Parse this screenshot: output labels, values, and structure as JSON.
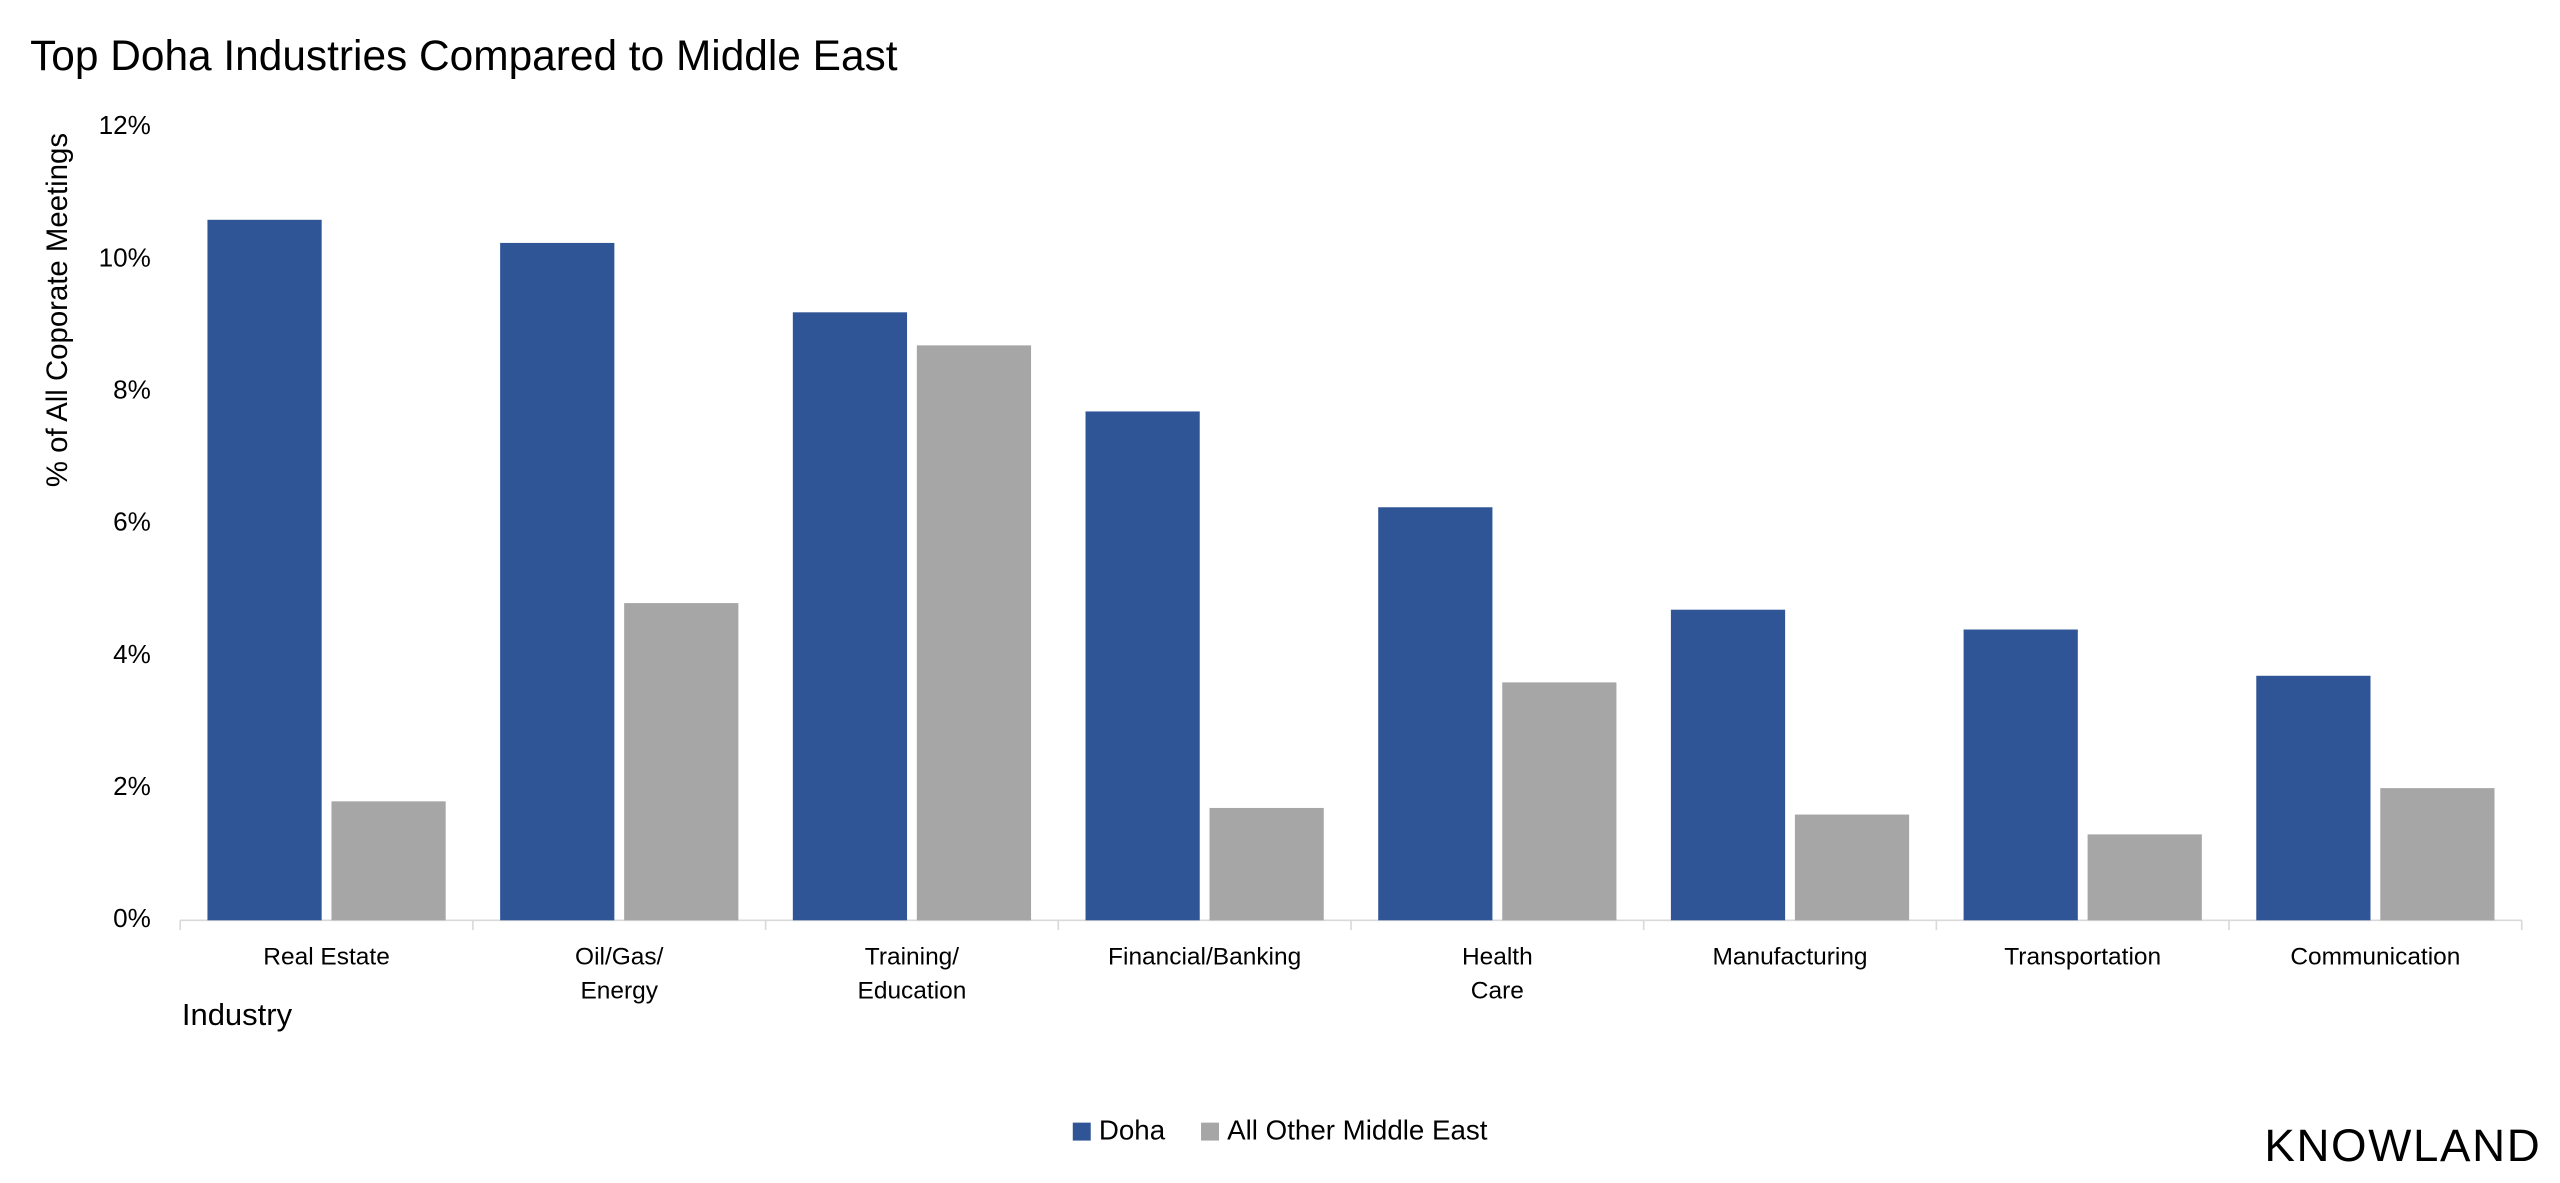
{
  "chart_data": {
    "type": "bar",
    "title": "Top Doha Industries Compared to Middle East",
    "y_label": "% of All Coporate Meetings",
    "x_label": "Industry",
    "brand": "KNOWLAND",
    "categories": [
      [
        "Real Estate"
      ],
      [
        "Oil/Gas/",
        "Energy"
      ],
      [
        "Training/",
        "Education"
      ],
      [
        "Financial/Banking"
      ],
      [
        "Health",
        "Care"
      ],
      [
        "Manufacturing"
      ],
      [
        "Transportation"
      ],
      [
        "Communication"
      ]
    ],
    "series": [
      {
        "name": "Doha",
        "color": "#2f5597",
        "values": [
          10.6,
          10.25,
          9.2,
          7.7,
          6.25,
          4.7,
          4.4,
          3.7
        ]
      },
      {
        "name": "All Other Middle East",
        "color": "#a6a6a6",
        "values": [
          1.8,
          4.8,
          8.7,
          1.7,
          3.6,
          1.6,
          1.3,
          2.0
        ]
      }
    ],
    "ylim": [
      0,
      12
    ],
    "yticks": [
      {
        "value": 0,
        "label": "0%"
      },
      {
        "value": 2,
        "label": "2%"
      },
      {
        "value": 4,
        "label": "4%"
      },
      {
        "value": 6,
        "label": "6%"
      },
      {
        "value": 8,
        "label": "8%"
      },
      {
        "value": 10,
        "label": "10%"
      },
      {
        "value": 12,
        "label": "12%"
      }
    ],
    "grid": false,
    "legend": "bottom"
  }
}
